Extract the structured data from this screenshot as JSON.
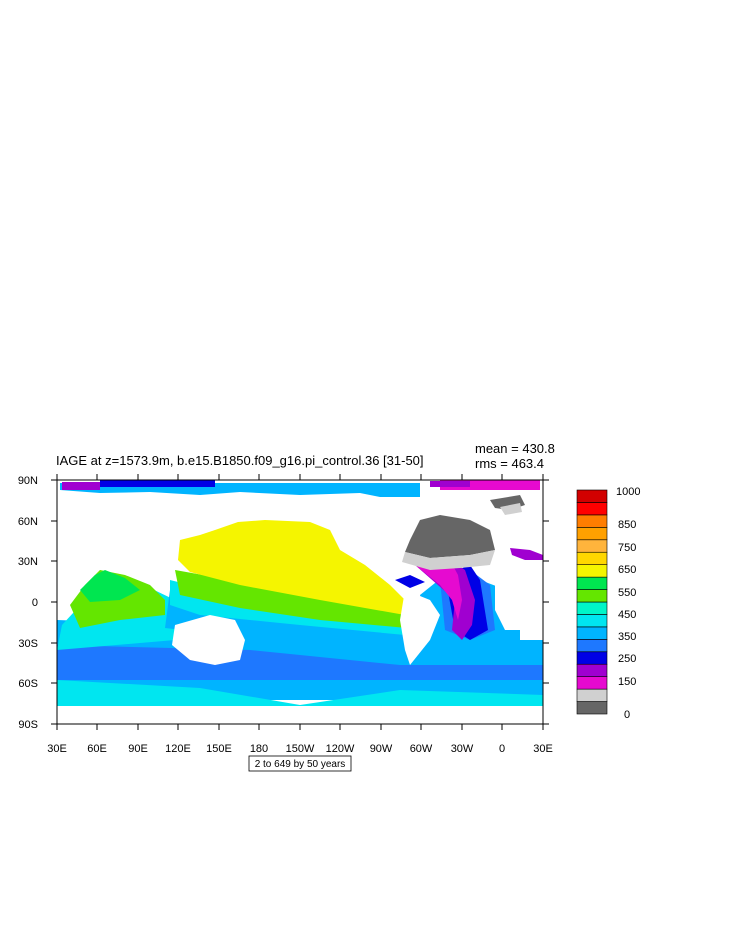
{
  "title": "IAGE at z=1573.9m, b.e15.B1850.f09_g16.pi_control.36 [31-50]",
  "stats": {
    "mean": "mean = 430.8",
    "rms": "rms = 463.4"
  },
  "contour_note": "2 to 649 by 50 years",
  "axes": {
    "lat_labels": [
      "90N",
      "60N",
      "30N",
      "0",
      "30S",
      "60S",
      "90S"
    ],
    "lon_labels": [
      "30E",
      "60E",
      "90E",
      "120E",
      "150E",
      "180",
      "150W",
      "120W",
      "90W",
      "60W",
      "30W",
      "0",
      "30E"
    ]
  },
  "colorbar": {
    "labels": [
      "1000",
      "850",
      "750",
      "650",
      "550",
      "450",
      "350",
      "250",
      "150",
      "0"
    ],
    "colors": [
      "#666666",
      "#d0d0d0",
      "#e60ad0",
      "#a000d0",
      "#0000e6",
      "#1e78ff",
      "#00b4ff",
      "#00e6f0",
      "#00f5c8",
      "#64e600",
      "#00e650",
      "#f5f500",
      "#ffd700",
      "#ffb43c",
      "#ffa000",
      "#ff7d00",
      "#ff0000",
      "#d20000"
    ]
  },
  "colors": {
    "land": "#ffffff",
    "ice_dark": "#666666",
    "ice_light": "#d0d0d0",
    "magenta": "#e60ad0",
    "purple": "#a000d0",
    "blue": "#0000e6",
    "mid_blue": "#1e78ff",
    "sky_blue": "#00b4ff",
    "cyan": "#00e6f0",
    "green": "#64e600",
    "yellow": "#f5f500"
  }
}
